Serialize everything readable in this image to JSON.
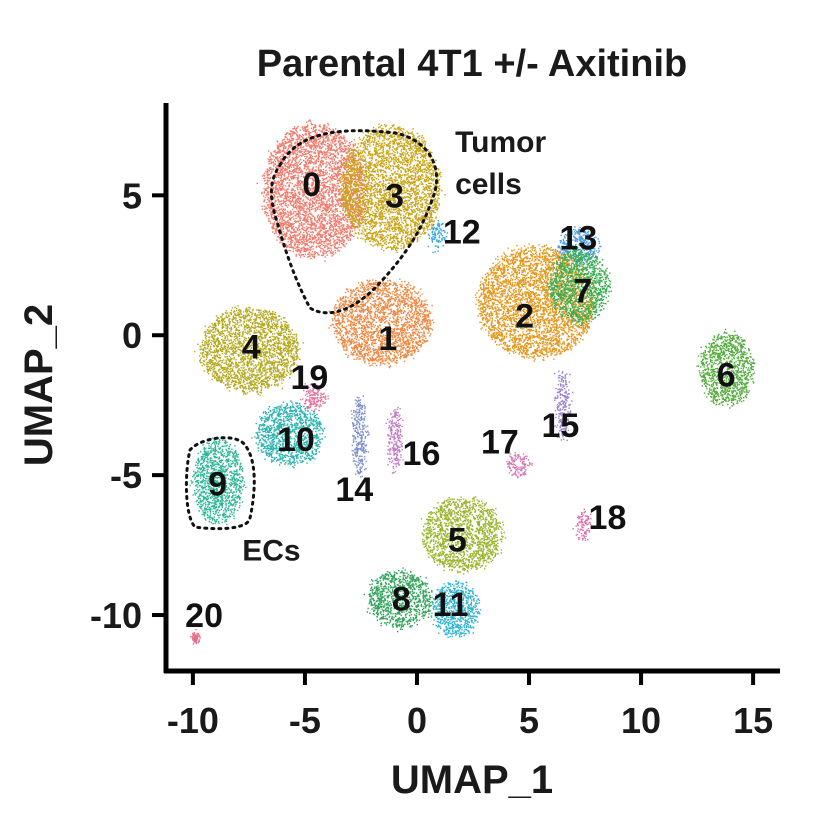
{
  "chart_data": {
    "type": "scatter",
    "title": "Parental 4T1 +/- Axitinib",
    "xlabel": "UMAP_1",
    "ylabel": "UMAP_2",
    "xlim": [
      -11.2,
      16.2
    ],
    "ylim": [
      -12.0,
      8.3
    ],
    "xticks": [
      -10,
      -5,
      0,
      5,
      10,
      15
    ],
    "yticks": [
      -10,
      -5,
      0,
      5
    ],
    "grid": false,
    "legend": "none",
    "clusters": [
      {
        "id": "0",
        "color": "#ef7b6c",
        "center": [
          -4.6,
          5.2
        ],
        "radius": [
          2.3,
          2.4
        ],
        "label_pos": [
          -4.7,
          5.4
        ]
      },
      {
        "id": "1",
        "color": "#ee8740",
        "center": [
          -1.6,
          0.5
        ],
        "radius": [
          2.2,
          1.5
        ],
        "label_pos": [
          -1.3,
          -0.1
        ]
      },
      {
        "id": "2",
        "color": "#e3971d",
        "center": [
          5.3,
          1.2
        ],
        "radius": [
          2.6,
          2.0
        ],
        "label_pos": [
          4.8,
          0.7
        ]
      },
      {
        "id": "3",
        "color": "#c8a416",
        "center": [
          -1.2,
          5.3
        ],
        "radius": [
          2.2,
          2.2
        ],
        "label_pos": [
          -1.0,
          5.0
        ]
      },
      {
        "id": "4",
        "color": "#b4a91e",
        "center": [
          -7.5,
          -0.5
        ],
        "radius": [
          2.2,
          1.5
        ],
        "label_pos": [
          -7.4,
          -0.4
        ]
      },
      {
        "id": "5",
        "color": "#99b52d",
        "center": [
          2.0,
          -7.1
        ],
        "radius": [
          1.8,
          1.3
        ],
        "label_pos": [
          1.8,
          -7.3
        ]
      },
      {
        "id": "6",
        "color": "#54ac3e",
        "center": [
          13.8,
          -1.2
        ],
        "radius": [
          1.2,
          1.3
        ],
        "label_pos": [
          13.8,
          -1.4
        ]
      },
      {
        "id": "7",
        "color": "#35ad4e",
        "center": [
          7.2,
          1.8
        ],
        "radius": [
          1.3,
          1.3
        ],
        "label_pos": [
          7.4,
          1.6
        ]
      },
      {
        "id": "8",
        "color": "#31a35a",
        "center": [
          -0.8,
          -9.4
        ],
        "radius": [
          1.4,
          1.0
        ],
        "label_pos": [
          -0.7,
          -9.4
        ]
      },
      {
        "id": "9",
        "color": "#2cb697",
        "center": [
          -8.9,
          -5.2
        ],
        "radius": [
          1.1,
          1.5
        ],
        "label_pos": [
          -8.9,
          -5.3
        ]
      },
      {
        "id": "10",
        "color": "#2ab3b0",
        "center": [
          -5.7,
          -3.5
        ],
        "radius": [
          1.5,
          1.1
        ],
        "label_pos": [
          -5.4,
          -3.7
        ]
      },
      {
        "id": "11",
        "color": "#2cb3cf",
        "center": [
          1.7,
          -9.8
        ],
        "radius": [
          1.0,
          1.0
        ],
        "label_pos": [
          1.5,
          -9.6
        ]
      },
      {
        "id": "12",
        "color": "#36a5dd",
        "center": [
          0.9,
          3.6
        ],
        "radius": [
          0.3,
          0.5
        ],
        "label_pos": [
          2.0,
          3.7
        ]
      },
      {
        "id": "13",
        "color": "#4a9ee0",
        "center": [
          7.2,
          3.2
        ],
        "radius": [
          0.9,
          0.6
        ],
        "label_pos": [
          7.2,
          3.5
        ]
      },
      {
        "id": "14",
        "color": "#7c8fd0",
        "center": [
          -2.6,
          -3.6
        ],
        "radius": [
          0.3,
          1.4
        ],
        "label_pos": [
          -2.8,
          -5.5
        ]
      },
      {
        "id": "15",
        "color": "#9c84cc",
        "center": [
          6.5,
          -2.5
        ],
        "radius": [
          0.3,
          1.2
        ],
        "label_pos": [
          6.4,
          -3.2
        ]
      },
      {
        "id": "16",
        "color": "#c07bc6",
        "center": [
          -1.0,
          -3.7
        ],
        "radius": [
          0.3,
          1.1
        ],
        "label_pos": [
          0.2,
          -4.2
        ]
      },
      {
        "id": "17",
        "color": "#d576b7",
        "center": [
          4.5,
          -4.6
        ],
        "radius": [
          0.5,
          0.4
        ],
        "label_pos": [
          3.7,
          -3.8
        ]
      },
      {
        "id": "18",
        "color": "#dc70a9",
        "center": [
          7.4,
          -6.8
        ],
        "radius": [
          0.3,
          0.5
        ],
        "label_pos": [
          8.5,
          -6.5
        ]
      },
      {
        "id": "19",
        "color": "#e36f9a",
        "center": [
          -4.6,
          -2.2
        ],
        "radius": [
          0.5,
          0.4
        ],
        "label_pos": [
          -4.8,
          -1.5
        ]
      },
      {
        "id": "20",
        "color": "#e4708c",
        "center": [
          -9.9,
          -10.8
        ],
        "radius": [
          0.12,
          0.15
        ],
        "label_pos": [
          -9.5,
          -10.0
        ]
      }
    ],
    "annotations": [
      {
        "id": "tumor-cells",
        "lines": [
          "Tumor",
          "cells"
        ],
        "pos": [
          1.7,
          6.9
        ]
      },
      {
        "id": "ecs",
        "lines": [
          "ECs"
        ],
        "pos": [
          -7.8,
          -7.7
        ]
      }
    ]
  }
}
